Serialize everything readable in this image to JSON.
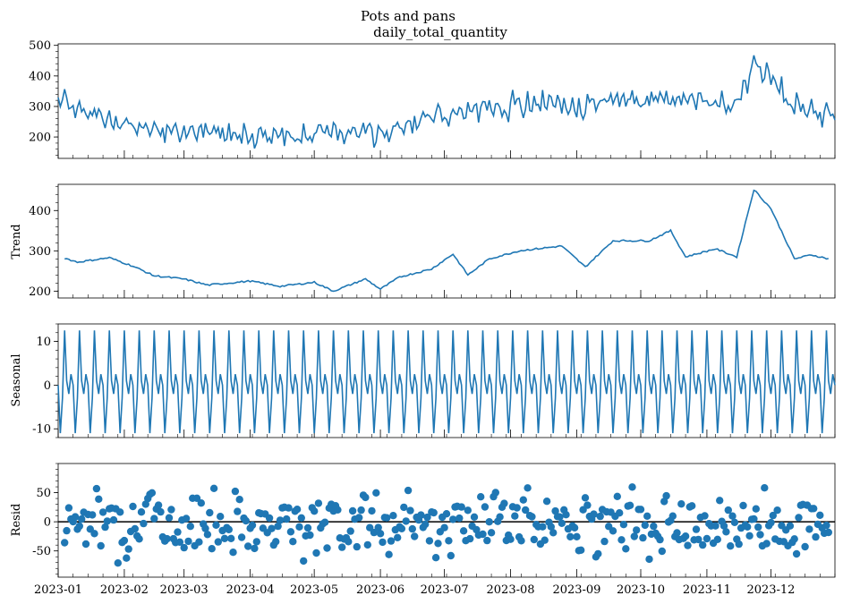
{
  "figure": {
    "suptitle": "Pots and pans",
    "colors": {
      "series": "#1f77b4",
      "axis": "#000000",
      "zero_line": "#000000"
    }
  },
  "chart_data": [
    {
      "type": "line",
      "panel": "observed",
      "title": "daily_total_quantity",
      "ylabel": "",
      "ylim": [
        130,
        505
      ],
      "yticks": [
        200,
        300,
        400,
        500
      ],
      "grid": false,
      "x_start": "2023-01-01",
      "x_end": "2023-12-31",
      "keypoints": [
        [
          "2023-01-01",
          330
        ],
        [
          "2023-01-15",
          285
        ],
        [
          "2023-02-01",
          245
        ],
        [
          "2023-02-15",
          225
        ],
        [
          "2023-03-01",
          215
        ],
        [
          "2023-03-15",
          215
        ],
        [
          "2023-04-01",
          210
        ],
        [
          "2023-04-15",
          205
        ],
        [
          "2023-05-01",
          210
        ],
        [
          "2023-05-15",
          220
        ],
        [
          "2023-06-01",
          210
        ],
        [
          "2023-06-15",
          240
        ],
        [
          "2023-07-01",
          270
        ],
        [
          "2023-07-15",
          290
        ],
        [
          "2023-08-01",
          300
        ],
        [
          "2023-08-15",
          310
        ],
        [
          "2023-09-01",
          295
        ],
        [
          "2023-09-15",
          315
        ],
        [
          "2023-10-01",
          325
        ],
        [
          "2023-10-15",
          330
        ],
        [
          "2023-11-01",
          315
        ],
        [
          "2023-11-15",
          300
        ],
        [
          "2023-11-23",
          440
        ],
        [
          "2023-11-30",
          410
        ],
        [
          "2023-12-10",
          300
        ],
        [
          "2023-12-20",
          275
        ],
        [
          "2023-12-31",
          270
        ]
      ],
      "seasonal_amplitude": 12,
      "noise_amplitude": 45
    },
    {
      "type": "line",
      "panel": "trend",
      "title": "",
      "ylabel": "Trend",
      "ylim": [
        183,
        465
      ],
      "yticks": [
        200,
        300,
        400
      ],
      "grid": false,
      "keypoints": [
        [
          "2023-01-04",
          282
        ],
        [
          "2023-01-10",
          272
        ],
        [
          "2023-01-25",
          283
        ],
        [
          "2023-02-05",
          262
        ],
        [
          "2023-02-15",
          238
        ],
        [
          "2023-03-01",
          230
        ],
        [
          "2023-03-12",
          215
        ],
        [
          "2023-04-01",
          225
        ],
        [
          "2023-04-15",
          212
        ],
        [
          "2023-05-01",
          222
        ],
        [
          "2023-05-10",
          200
        ],
        [
          "2023-05-25",
          230
        ],
        [
          "2023-06-01",
          205
        ],
        [
          "2023-06-10",
          235
        ],
        [
          "2023-06-25",
          255
        ],
        [
          "2023-07-05",
          292
        ],
        [
          "2023-07-12",
          240
        ],
        [
          "2023-07-22",
          280
        ],
        [
          "2023-08-05",
          300
        ],
        [
          "2023-08-25",
          312
        ],
        [
          "2023-09-05",
          260
        ],
        [
          "2023-09-18",
          325
        ],
        [
          "2023-10-05",
          325
        ],
        [
          "2023-10-15",
          350
        ],
        [
          "2023-10-22",
          285
        ],
        [
          "2023-11-05",
          305
        ],
        [
          "2023-11-15",
          285
        ],
        [
          "2023-11-23",
          452
        ],
        [
          "2023-12-01",
          405
        ],
        [
          "2023-12-12",
          280
        ],
        [
          "2023-12-20",
          290
        ],
        [
          "2023-12-28",
          280
        ]
      ]
    },
    {
      "type": "line",
      "panel": "seasonal",
      "title": "",
      "ylabel": "Seasonal",
      "ylim": [
        -12,
        14
      ],
      "yticks": [
        -10,
        0,
        10
      ],
      "grid": false,
      "period_days": 7,
      "cycle_values": [
        0.0,
        -11.0,
        -3.0,
        12.5,
        1.0,
        -2.0,
        2.5
      ]
    },
    {
      "type": "scatter",
      "panel": "resid",
      "title": "",
      "ylabel": "Resid",
      "ylim": [
        -95,
        100
      ],
      "yticks": [
        -50,
        0,
        50
      ],
      "grid": false,
      "zero_line": true,
      "spread": 40
    }
  ],
  "xaxis": {
    "ticks": [
      {
        "date": "2023-01-01",
        "label": "2023-01"
      },
      {
        "date": "2023-02-01",
        "label": "2023-02"
      },
      {
        "date": "2023-03-01",
        "label": "2023-03"
      },
      {
        "date": "2023-04-01",
        "label": "2023-04"
      },
      {
        "date": "2023-05-01",
        "label": "2023-05"
      },
      {
        "date": "2023-06-01",
        "label": "2023-06"
      },
      {
        "date": "2023-07-01",
        "label": "2023-07"
      },
      {
        "date": "2023-08-01",
        "label": "2023-08"
      },
      {
        "date": "2023-09-01",
        "label": "2023-09"
      },
      {
        "date": "2023-10-01",
        "label": "2023-10"
      },
      {
        "date": "2023-11-01",
        "label": "2023-11"
      },
      {
        "date": "2023-12-01",
        "label": "2023-12"
      }
    ]
  }
}
